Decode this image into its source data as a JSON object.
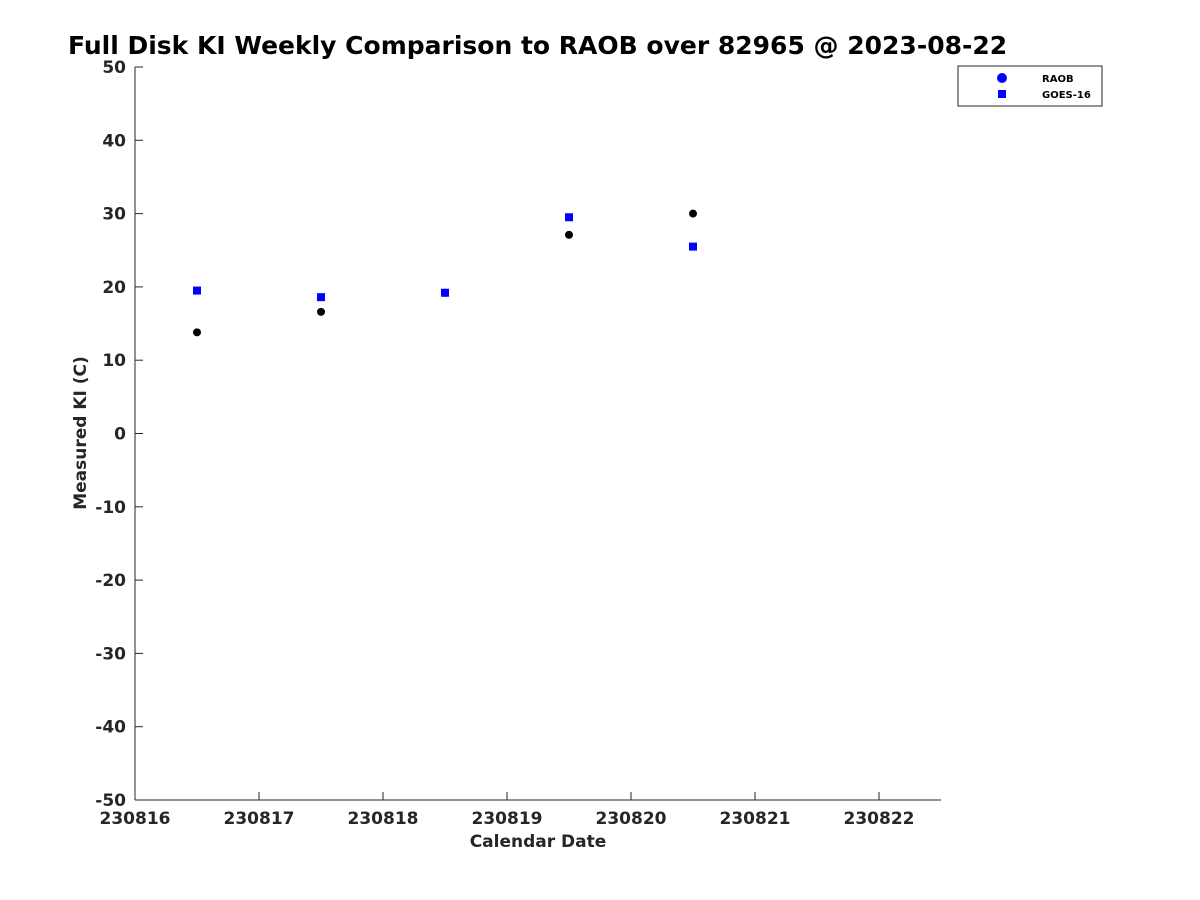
{
  "chart_data": {
    "type": "scatter",
    "title": "Full Disk KI Weekly Comparison to RAOB over 82965 @ 2023-08-22",
    "xlabel": "Calendar Date",
    "ylabel": "Measured KI (C)",
    "xlim": [
      230816,
      230822.5
    ],
    "ylim": [
      -50,
      50
    ],
    "x_ticks": [
      230816,
      230817,
      230818,
      230819,
      230820,
      230821,
      230822
    ],
    "x_tick_labels": [
      "230816",
      "230817",
      "230818",
      "230819",
      "230820",
      "230821",
      "230822"
    ],
    "y_ticks": [
      50,
      40,
      30,
      20,
      10,
      0,
      -10,
      -20,
      -30,
      -40,
      -50
    ],
    "y_tick_labels": [
      "50",
      "40",
      "30",
      "20",
      "10",
      "0",
      "-10",
      "-20",
      "-30",
      "-40",
      "-50"
    ],
    "grid": false,
    "legend_position": "top-right (outside plot)",
    "legend": [
      {
        "label": "RAOB",
        "marker": "circle",
        "color": "#0000ff"
      },
      {
        "label": "GOES-16",
        "marker": "square",
        "color": "#0000ff"
      }
    ],
    "series": [
      {
        "name": "RAOB",
        "marker": "circle",
        "color": "#000000",
        "x": [
          230816.5,
          230817.5,
          230818.5,
          230819.5,
          230820.5
        ],
        "y": [
          13.8,
          16.6,
          19.2,
          27.1,
          30.0
        ]
      },
      {
        "name": "GOES-16",
        "marker": "square",
        "color": "#0000ff",
        "x": [
          230816.5,
          230817.5,
          230818.5,
          230819.5,
          230820.5
        ],
        "y": [
          19.5,
          18.6,
          19.2,
          29.5,
          25.5
        ]
      }
    ]
  }
}
